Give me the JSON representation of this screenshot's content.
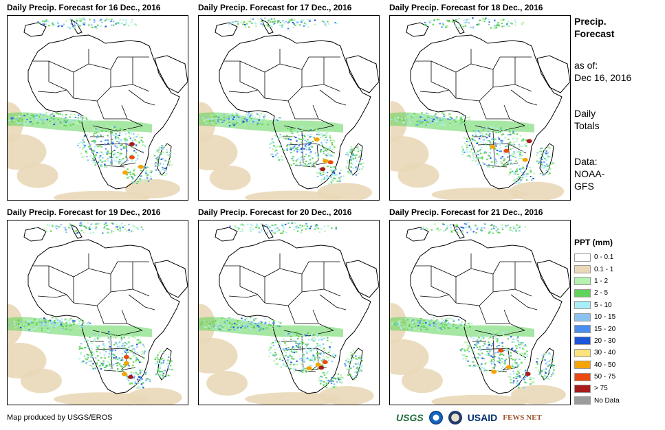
{
  "panels": [
    {
      "title": "Daily Precip. Forecast for 16 Dec., 2016",
      "seed": 11
    },
    {
      "title": "Daily Precip. Forecast for 17 Dec., 2016",
      "seed": 23
    },
    {
      "title": "Daily Precip. Forecast for 18 Dec., 2016",
      "seed": 37
    },
    {
      "title": "Daily Precip. Forecast for 19 Dec., 2016",
      "seed": 41
    },
    {
      "title": "Daily Precip. Forecast for 20 Dec., 2016",
      "seed": 53
    },
    {
      "title": "Daily Precip. Forecast for 21 Dec., 2016",
      "seed": 67
    }
  ],
  "sidebar": {
    "heading_line1": "Precip.",
    "heading_line2": "Forecast",
    "asof_label": "as of:",
    "asof_date": "Dec 16, 2016",
    "totals_line1": "Daily",
    "totals_line2": "Totals",
    "data_label": "Data:",
    "data_line1": "NOAA-",
    "data_line2": "GFS"
  },
  "legend": {
    "title": "PPT (mm)",
    "items": [
      {
        "label": "0 - 0.1",
        "color": "#ffffff"
      },
      {
        "label": "0.1 - 1",
        "color": "#ead8b8"
      },
      {
        "label": "1 - 2",
        "color": "#b6f2b0"
      },
      {
        "label": "2 - 5",
        "color": "#5fd35a"
      },
      {
        "label": "5 - 10",
        "color": "#a8eef6"
      },
      {
        "label": "10 - 15",
        "color": "#8cc2f2"
      },
      {
        "label": "15 - 20",
        "color": "#4a8ff0"
      },
      {
        "label": "20 - 30",
        "color": "#1f56d8"
      },
      {
        "label": "30 - 40",
        "color": "#fbe37e"
      },
      {
        "label": "40 - 50",
        "color": "#f5a400"
      },
      {
        "label": "50 - 75",
        "color": "#ea4a10"
      },
      {
        "label": "> 75",
        "color": "#a81c1c"
      },
      {
        "label": "No Data",
        "color": "#9b9b9b"
      }
    ]
  },
  "footer": {
    "credit": "Map produced by USGS/EROS",
    "logo_usgs": "USGS",
    "logo_usaid": "USAID",
    "logo_fews": "FEWS NET"
  }
}
